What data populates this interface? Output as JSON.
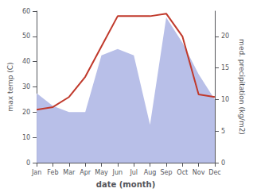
{
  "chart_data": {
    "type": "line",
    "xlabel": "date (month)",
    "ylabel": "max temp (C)",
    "y2label": "med. precipitation (kg/m2)",
    "categories": [
      "Jan",
      "Feb",
      "Mar",
      "Apr",
      "May",
      "Jun",
      "Jul",
      "Aug",
      "Sep",
      "Oct",
      "Nov",
      "Dec"
    ],
    "series": [
      {
        "type": "area",
        "color": "#b8bfe8",
        "axis": "y2",
        "values": [
          11,
          9,
          8,
          8,
          17,
          18,
          17,
          6,
          23,
          19,
          14,
          10
        ]
      },
      {
        "type": "line",
        "color": "#c0392b",
        "values": [
          21,
          22,
          26,
          34,
          46,
          58,
          58,
          58,
          59,
          50,
          27,
          26
        ]
      }
    ],
    "ylim": [
      0,
      60
    ],
    "yticks": [
      0,
      10,
      20,
      30,
      40,
      50,
      60
    ],
    "y2lim": [
      0,
      24
    ],
    "y2ticks": [
      0,
      5,
      10,
      15,
      20
    ],
    "grid": false
  }
}
